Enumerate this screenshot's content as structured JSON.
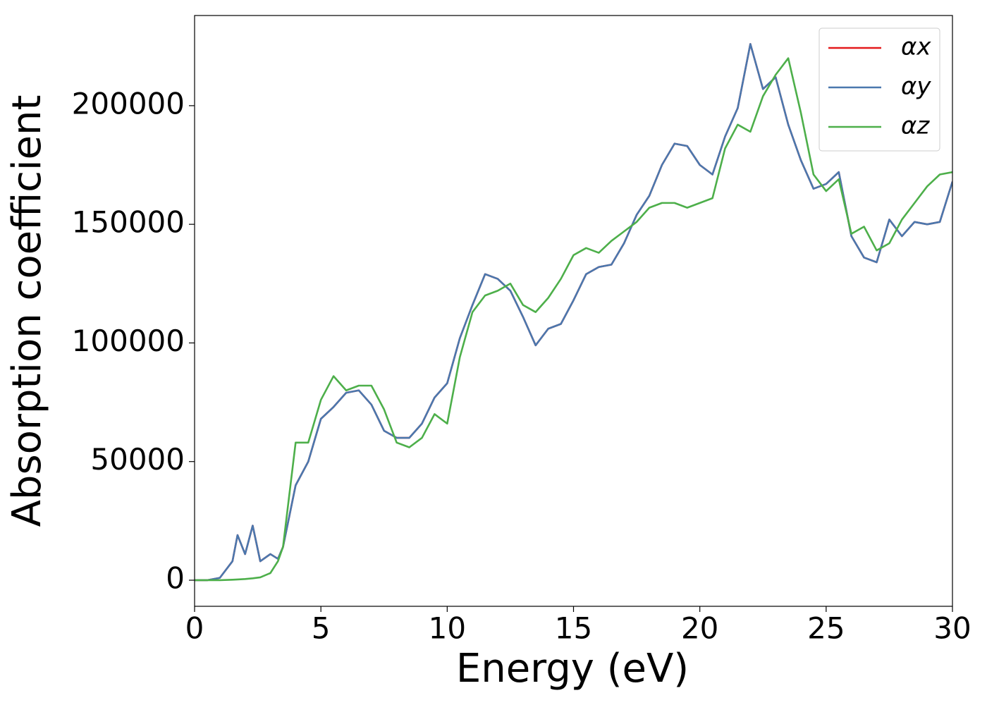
{
  "chart_data": {
    "type": "line",
    "xlabel": "Energy (eV)",
    "ylabel": "Absorption coefficient",
    "x": [
      0,
      0.5,
      1,
      1.5,
      1.7,
      2,
      2.3,
      2.6,
      3,
      3.3,
      3.5,
      4,
      4.5,
      5,
      5.5,
      6,
      6.5,
      7,
      7.5,
      8,
      8.5,
      9,
      9.5,
      10,
      10.5,
      11,
      11.5,
      12,
      12.5,
      13,
      13.5,
      14,
      14.5,
      15,
      15.5,
      16,
      16.5,
      17,
      17.5,
      18,
      18.5,
      19,
      19.5,
      20,
      20.5,
      21,
      21.5,
      22,
      22.5,
      23,
      23.5,
      24,
      24.5,
      25,
      25.5,
      26,
      26.5,
      27,
      27.5,
      28,
      28.5,
      29,
      29.5,
      30
    ],
    "series": [
      {
        "name": "αx",
        "color": "#e41a1c",
        "values": [
          0,
          0,
          1000,
          8000,
          19000,
          11000,
          23000,
          8000,
          11000,
          9000,
          14000,
          40000,
          50000,
          68000,
          73000,
          79000,
          80000,
          74000,
          63000,
          60000,
          60000,
          66000,
          77000,
          83000,
          102000,
          116000,
          129000,
          127000,
          122000,
          111000,
          99000,
          106000,
          108000,
          118000,
          129000,
          132000,
          133000,
          142000,
          154000,
          162000,
          175000,
          184000,
          183000,
          175000,
          171000,
          187000,
          199000,
          226000,
          207000,
          212000,
          192000,
          177000,
          165000,
          167000,
          172000,
          145000,
          136000,
          134000,
          152000,
          145000,
          151000,
          150000,
          151000,
          168000
        ]
      },
      {
        "name": "αy",
        "color": "#4a78ae",
        "values": [
          0,
          0,
          1000,
          8000,
          19000,
          11000,
          23000,
          8000,
          11000,
          9000,
          14000,
          40000,
          50000,
          68000,
          73000,
          79000,
          80000,
          74000,
          63000,
          60000,
          60000,
          66000,
          77000,
          83000,
          102000,
          116000,
          129000,
          127000,
          122000,
          111000,
          99000,
          106000,
          108000,
          118000,
          129000,
          132000,
          133000,
          142000,
          154000,
          162000,
          175000,
          184000,
          183000,
          175000,
          171000,
          187000,
          199000,
          226000,
          207000,
          212000,
          192000,
          177000,
          165000,
          167000,
          172000,
          145000,
          136000,
          134000,
          152000,
          145000,
          151000,
          150000,
          151000,
          168000
        ]
      },
      {
        "name": "αz",
        "color": "#4daf4a",
        "values": [
          0,
          0,
          0,
          200,
          300,
          500,
          800,
          1200,
          3000,
          8000,
          14000,
          58000,
          58000,
          76000,
          86000,
          80000,
          82000,
          82000,
          72000,
          58000,
          56000,
          60000,
          70000,
          66000,
          94000,
          113000,
          120000,
          122000,
          125000,
          116000,
          113000,
          119000,
          127000,
          137000,
          140000,
          138000,
          143000,
          147000,
          151000,
          157000,
          159000,
          159000,
          157000,
          159000,
          161000,
          182000,
          192000,
          189000,
          204000,
          213000,
          220000,
          197000,
          171000,
          164000,
          169000,
          146000,
          149000,
          139000,
          142000,
          152000,
          159000,
          166000,
          171000,
          172000
        ]
      }
    ],
    "xlim": [
      0,
      30
    ],
    "xticks": [
      0,
      5,
      10,
      15,
      20,
      25,
      30
    ],
    "ylim": [
      -11000,
      238000
    ],
    "yticks": [
      0,
      50000,
      100000,
      150000,
      200000
    ],
    "legend": "upper right",
    "grid": false
  }
}
